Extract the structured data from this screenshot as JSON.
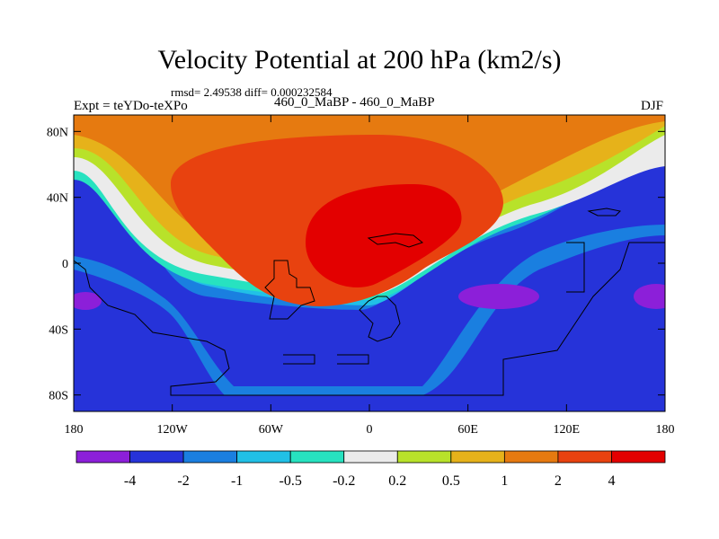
{
  "chart_data": {
    "type": "heatmap",
    "title": "Velocity Potential at 200 hPa (km2/s)",
    "stats_text": "rmsd= 2.49538 diff= 0.000232584",
    "left_label": "Expt = teYDo-teXPo",
    "center_label": "460_0_MaBP - 460_0_MaBP",
    "right_label": "DJF",
    "x_ticks": [
      "180",
      "120W",
      "60W",
      "0",
      "60E",
      "120E",
      "180"
    ],
    "x_tick_values": [
      -180,
      -120,
      -60,
      0,
      60,
      120,
      180
    ],
    "y_ticks": [
      "80N",
      "40N",
      "0",
      "40S",
      "80S"
    ],
    "y_tick_values": [
      80,
      40,
      0,
      -40,
      -80
    ],
    "xlim": [
      -180,
      180
    ],
    "ylim": [
      -90,
      90
    ],
    "contour_levels": [
      "-4",
      "-2",
      "-1",
      "-0.5",
      "-0.2",
      "0.2",
      "0.5",
      "1",
      "2",
      "4"
    ],
    "colorbar_colors": [
      "#8c1fd9",
      "#2633d9",
      "#1a7fe0",
      "#21c0e6",
      "#27e2c0",
      "#ebebeb",
      "#b8e22a",
      "#e6b21a",
      "#e67a10",
      "#e8420f",
      "#e30000"
    ],
    "field_regions": [
      {
        "level": "> 2",
        "description": "northern midlatitudes, 150W to 60E"
      },
      {
        "level": "> 4",
        "description": "centered near 20W-30E, 0-40N"
      },
      {
        "level": "< -2",
        "description": "southern oceans and Pacific"
      },
      {
        "level": "< -4",
        "description": "small cores near 170W 20S and 120E-180 20S"
      }
    ]
  }
}
